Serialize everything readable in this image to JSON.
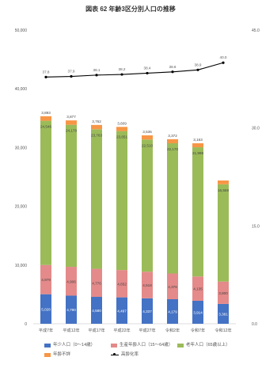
{
  "title": "図表 62 年齢3区分別人口の推移",
  "chart_data": {
    "type": "bar",
    "stacked": true,
    "categories": [
      "平成7年",
      "平成12年",
      "平成17年",
      "平成22年",
      "平成27年",
      "令和2年",
      "令和7年",
      "令和12年"
    ],
    "series": [
      {
        "name": "年少人口（0〜14歳）",
        "color": "#4472c4",
        "values": [
          5028,
          4790,
          4580,
          4497,
          4337,
          4179,
          3914,
          3381
        ]
      },
      {
        "name": "生産年齢人口（15〜64歳）",
        "color": "#e48a8a",
        "values": [
          4979,
          4906,
          4776,
          4652,
          4518,
          4376,
          4135,
          3800
        ]
      },
      {
        "name": "老年人口（65歳以上）",
        "color": "#9bbb59",
        "values": [
          24546,
          24178,
          23763,
          23651,
          22510,
          22170,
          21998,
          16559
        ]
      },
      {
        "name": "年齢不詳",
        "color": "#f79646",
        "values": [
          780,
          750,
          730,
          720,
          710,
          700,
          680,
          650
        ]
      }
    ],
    "line_series": {
      "name": "高齢化率",
      "values": [
        37.8,
        37.9,
        38.1,
        38.2,
        38.4,
        38.6,
        38.9,
        40.0
      ]
    },
    "bar_labels": {
      "total": [
        "3,893",
        "3,877",
        "3,762",
        "3,609",
        "3,535",
        "3,372",
        "3,163",
        ""
      ],
      "group3": [
        "24,546",
        "24,178",
        "23,763",
        "23,651",
        "22,510",
        "22,170",
        "21,998",
        "16,559"
      ],
      "group2": [
        "4,979",
        "4,906",
        "4,776",
        "4,652",
        "4,518",
        "4,376",
        "4,135",
        "3,800"
      ],
      "group1": [
        "5,028",
        "4,790",
        "4,580",
        "4,497",
        "4,337",
        "4,179",
        "3,914",
        "3,381"
      ]
    },
    "line_labels": [
      "37.8",
      "37.9",
      "38.1",
      "38.2",
      "38.4",
      "38.6",
      "38.9",
      "40.0"
    ],
    "left_axis": {
      "ticks": [
        "0",
        "10,000",
        "20,000",
        "30,000",
        "40,000",
        "50,000"
      ],
      "ylim": [
        0,
        50000
      ]
    },
    "right_axis": {
      "ticks": [
        "0.0",
        "15.0",
        "30.0",
        "45.0"
      ],
      "ylim": [
        0,
        45
      ]
    }
  },
  "legend": [
    {
      "label": "年少人口（0〜14歳）",
      "color": "#4472c4",
      "kind": "bar"
    },
    {
      "label": "生産年齢人口（15〜64歳）",
      "color": "#e48a8a",
      "kind": "bar"
    },
    {
      "label": "老年人口（65歳以上）",
      "color": "#9bbb59",
      "kind": "bar"
    },
    {
      "label": "年齢不詳",
      "color": "#f79646",
      "kind": "bar"
    },
    {
      "label": "高齢化率",
      "color": "#000000",
      "kind": "line"
    }
  ]
}
